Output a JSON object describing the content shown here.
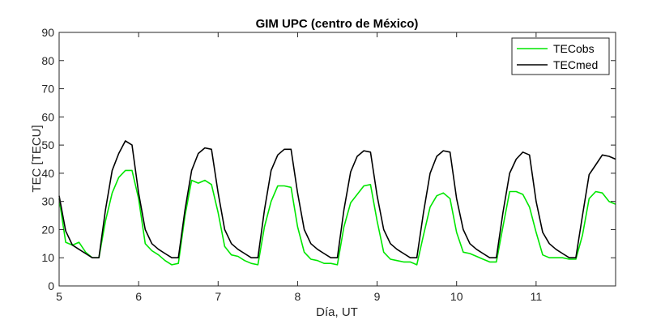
{
  "chart_data": {
    "type": "line",
    "title": "GIM UPC (centro de México)",
    "xlabel": "Día, UT",
    "ylabel": "TEC [TECU]",
    "xlim": [
      5,
      12
    ],
    "ylim": [
      0,
      90
    ],
    "xticks": [
      5,
      6,
      7,
      8,
      9,
      10,
      11
    ],
    "yticks": [
      0,
      10,
      20,
      30,
      40,
      50,
      60,
      70,
      80,
      90
    ],
    "grid": false,
    "legend_position": "top-right",
    "series": [
      {
        "name": "TECobs",
        "color": "#00e600",
        "x": [
          5.0,
          5.083,
          5.167,
          5.25,
          5.333,
          5.417,
          5.5,
          5.583,
          5.667,
          5.75,
          5.833,
          5.917,
          6.0,
          6.083,
          6.167,
          6.25,
          6.333,
          6.417,
          6.5,
          6.583,
          6.667,
          6.75,
          6.833,
          6.917,
          7.0,
          7.083,
          7.167,
          7.25,
          7.333,
          7.417,
          7.5,
          7.583,
          7.667,
          7.75,
          7.833,
          7.917,
          8.0,
          8.083,
          8.167,
          8.25,
          8.333,
          8.417,
          8.5,
          8.583,
          8.667,
          8.75,
          8.833,
          8.917,
          9.0,
          9.083,
          9.167,
          9.25,
          9.333,
          9.417,
          9.5,
          9.583,
          9.667,
          9.75,
          9.833,
          9.917,
          10.0,
          10.083,
          10.167,
          10.25,
          10.333,
          10.417,
          10.5,
          10.583,
          10.667,
          10.75,
          10.833,
          10.917,
          11.0,
          11.083,
          11.167,
          11.25,
          11.333,
          11.417,
          11.5,
          11.583,
          11.667,
          11.75,
          11.833,
          11.917,
          12.0
        ],
        "y": [
          31,
          15.5,
          14.5,
          15.5,
          12,
          10,
          10,
          23,
          33,
          38.5,
          41,
          41,
          31,
          15,
          12.5,
          11,
          9,
          7.5,
          8,
          25,
          37.5,
          36.5,
          37.5,
          36,
          26,
          14,
          11,
          10.5,
          9,
          8,
          7.5,
          21,
          30,
          35.5,
          35.5,
          35,
          21,
          12,
          9.5,
          9,
          8,
          8,
          7.5,
          21,
          29.5,
          32.5,
          35.5,
          36,
          23,
          12,
          9.5,
          9,
          8.5,
          8.5,
          7.5,
          18,
          28,
          32,
          33,
          31,
          19,
          12,
          11.5,
          10.5,
          9.5,
          8.5,
          8.5,
          21,
          33.5,
          33.5,
          32.5,
          28,
          19,
          11,
          10,
          10,
          10,
          9.5,
          9.5,
          18,
          31,
          33.5,
          33,
          30,
          29
        ]
      },
      {
        "name": "TECmed",
        "color": "#000000",
        "x": [
          5.0,
          5.083,
          5.167,
          5.25,
          5.333,
          5.417,
          5.5,
          5.583,
          5.667,
          5.75,
          5.833,
          5.917,
          6.0,
          6.083,
          6.167,
          6.25,
          6.333,
          6.417,
          6.5,
          6.583,
          6.667,
          6.75,
          6.833,
          6.917,
          7.0,
          7.083,
          7.167,
          7.25,
          7.333,
          7.417,
          7.5,
          7.583,
          7.667,
          7.75,
          7.833,
          7.917,
          8.0,
          8.083,
          8.167,
          8.25,
          8.333,
          8.417,
          8.5,
          8.583,
          8.667,
          8.75,
          8.833,
          8.917,
          9.0,
          9.083,
          9.167,
          9.25,
          9.333,
          9.417,
          9.5,
          9.583,
          9.667,
          9.75,
          9.833,
          9.917,
          10.0,
          10.083,
          10.167,
          10.25,
          10.333,
          10.417,
          10.5,
          10.583,
          10.667,
          10.75,
          10.833,
          10.917,
          11.0,
          11.083,
          11.167,
          11.25,
          11.333,
          11.417,
          11.5,
          11.583,
          11.667,
          11.75,
          11.833,
          11.917,
          12.0
        ],
        "y": [
          32,
          19.5,
          14.5,
          13,
          11.5,
          10,
          10,
          27,
          41,
          47,
          51.5,
          50,
          33,
          20,
          15,
          13,
          11.5,
          10,
          10,
          27,
          41,
          47,
          49,
          48.5,
          33,
          20,
          15,
          13,
          11.5,
          10,
          10,
          27,
          41,
          46.5,
          48.5,
          48.5,
          33,
          20,
          15,
          13,
          11.5,
          10,
          10,
          27,
          40.5,
          46,
          48,
          47.5,
          32,
          20,
          15,
          13,
          11.5,
          10,
          10,
          26,
          40,
          46,
          48,
          47.5,
          31,
          20,
          15,
          13,
          11.5,
          10,
          10,
          26,
          40,
          45,
          47.5,
          46.5,
          30,
          19,
          15,
          13,
          11.5,
          10,
          10,
          25,
          39.5,
          43,
          46.5,
          46,
          45
        ]
      }
    ]
  }
}
